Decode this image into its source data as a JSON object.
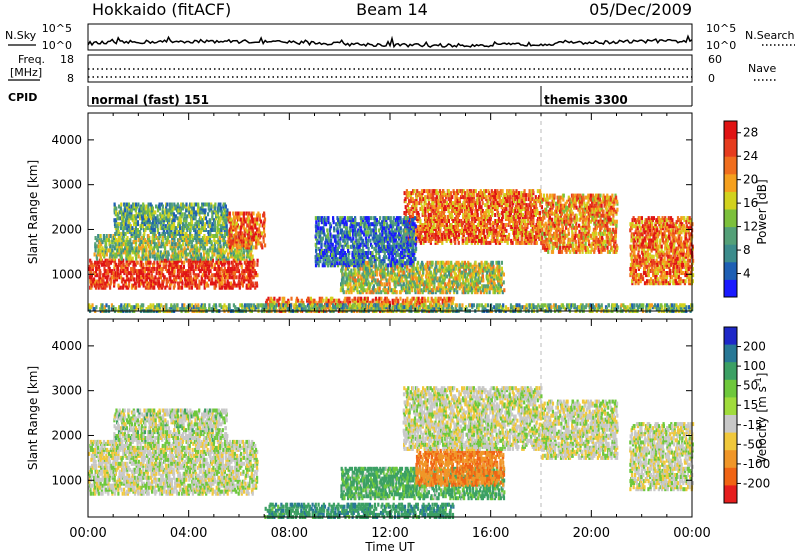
{
  "header": {
    "station": "Hokkaido (fitACF)",
    "beam": "Beam 14",
    "date": "05/Dec/2009"
  },
  "params": {
    "nsky_label": "N.Sky",
    "nsearch_label": "N.Search",
    "freq_label_1": "Freq.",
    "freq_label_2": "[MHz]",
    "nave_label": "Nave",
    "cpid_label": "CPID",
    "noise_ticks": [
      "10^5",
      "10^0"
    ],
    "freq_ticks": [
      "18",
      "8"
    ],
    "nave_ticks": [
      "60",
      "0"
    ],
    "modes": [
      {
        "name": "normal (fast) 151",
        "start_hour": 0
      },
      {
        "name": "themis 3300",
        "start_hour": 18.0
      }
    ]
  },
  "colors": {
    "power": [
      "#1a1aff",
      "#1e5fb4",
      "#3c8c8c",
      "#54a078",
      "#7cc03c",
      "#d2d21e",
      "#f5a01e",
      "#f06e1e",
      "#e63c1e",
      "#e01414"
    ],
    "velocity": [
      "#1e28c8",
      "#287896",
      "#3ca064",
      "#6ec83c",
      "#a0dc3c",
      "#c8c8c8",
      "#f0c83c",
      "#f09628",
      "#f06414",
      "#e61e1e"
    ]
  },
  "chart_data": [
    {
      "type": "heatmap",
      "name": "power",
      "ylabel": "Slant Range [km]",
      "xlabel": "Time UT",
      "xticks": [
        "00:00",
        "04:00",
        "08:00",
        "12:00",
        "16:00",
        "20:00",
        "00:00"
      ],
      "yticks": [
        "1000",
        "2000",
        "3000",
        "4000"
      ],
      "ylim": [
        180,
        4600
      ],
      "xlim": [
        0,
        24
      ],
      "colorbar": {
        "label": "Power [dB]",
        "ticks": [
          "4",
          "8",
          "12",
          "16",
          "20",
          "24",
          "28"
        ],
        "range": [
          0,
          30
        ]
      },
      "regions": [
        {
          "t0": 0.0,
          "t1": 6.7,
          "r0": 700,
          "r1": 1350,
          "level": 0.9
        },
        {
          "t0": 0.2,
          "t1": 6.5,
          "r0": 1350,
          "r1": 1900,
          "level": 0.45
        },
        {
          "t0": 5.5,
          "t1": 7.0,
          "r0": 1600,
          "r1": 2400,
          "level": 0.8
        },
        {
          "t0": 1.0,
          "t1": 5.5,
          "r0": 1900,
          "r1": 2600,
          "level": 0.35
        },
        {
          "t0": 7.0,
          "t1": 14.5,
          "r0": 180,
          "r1": 500,
          "level": 0.75
        },
        {
          "t0": 10.0,
          "t1": 16.5,
          "r0": 600,
          "r1": 1300,
          "level": 0.5
        },
        {
          "t0": 12.5,
          "t1": 18.0,
          "r0": 1700,
          "r1": 2900,
          "level": 0.75
        },
        {
          "t0": 9.0,
          "t1": 13.0,
          "r0": 1200,
          "r1": 2300,
          "level": 0.2
        },
        {
          "t0": 18.0,
          "t1": 21.0,
          "r0": 1500,
          "r1": 2800,
          "level": 0.7
        },
        {
          "t0": 21.5,
          "t1": 24.0,
          "r0": 800,
          "r1": 2300,
          "level": 0.75
        },
        {
          "t0": 0.0,
          "t1": 24.0,
          "r0": 180,
          "r1": 350,
          "level": 0.4
        }
      ]
    },
    {
      "type": "heatmap",
      "name": "velocity",
      "ylabel": "Slant Range [km]",
      "xlabel": "Time UT",
      "xticks": [
        "00:00",
        "04:00",
        "08:00",
        "12:00",
        "16:00",
        "20:00",
        "00:00"
      ],
      "yticks": [
        "1000",
        "2000",
        "3000",
        "4000"
      ],
      "ylim": [
        180,
        4600
      ],
      "xlim": [
        0,
        24
      ],
      "colorbar": {
        "label": "Velocity [m s^-1]",
        "ticks": [
          "200",
          "100",
          "50",
          "15",
          "-15",
          "-50",
          "-100",
          "-200"
        ],
        "range": [
          -250,
          250
        ]
      },
      "regions": [
        {
          "t0": 0.0,
          "t1": 6.7,
          "r0": 700,
          "r1": 1900,
          "value": 0
        },
        {
          "t0": 1.0,
          "t1": 5.5,
          "r0": 1900,
          "r1": 2600,
          "value": 5
        },
        {
          "t0": 7.0,
          "t1": 14.5,
          "r0": 180,
          "r1": 500,
          "value": 60
        },
        {
          "t0": 10.0,
          "t1": 16.5,
          "r0": 600,
          "r1": 1300,
          "value": 40
        },
        {
          "t0": 13.0,
          "t1": 16.5,
          "r0": 900,
          "r1": 1700,
          "value": -70
        },
        {
          "t0": 12.5,
          "t1": 18.0,
          "r0": 1700,
          "r1": 3100,
          "value": 0
        },
        {
          "t0": 18.0,
          "t1": 21.0,
          "r0": 1500,
          "r1": 2800,
          "value": 0
        },
        {
          "t0": 21.5,
          "t1": 24.0,
          "r0": 800,
          "r1": 2300,
          "value": 0
        }
      ]
    }
  ]
}
